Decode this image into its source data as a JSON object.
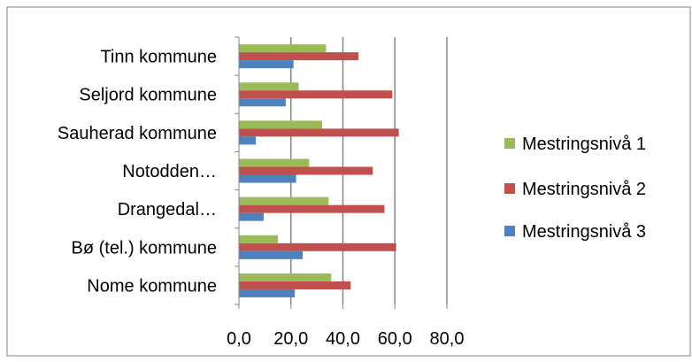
{
  "chart_data": {
    "type": "bar",
    "orientation": "horizontal",
    "categories": [
      "Nome kommune",
      "Bø (tel.) kommune",
      "Drangedal…",
      "Notodden…",
      "Sauherad kommune",
      "Seljord kommune",
      "Tinn kommune"
    ],
    "series": [
      {
        "name": "Mestringsnivå 1",
        "color": "#9BBB59",
        "values": [
          35.5,
          15.0,
          34.5,
          27.0,
          32.0,
          23.0,
          33.5
        ]
      },
      {
        "name": "Mestringsnivå 2",
        "color": "#C0504D",
        "values": [
          43.0,
          60.5,
          56.0,
          51.5,
          61.5,
          59.0,
          46.0
        ]
      },
      {
        "name": "Mestringsnivå 3",
        "color": "#4F81BD",
        "values": [
          21.5,
          24.5,
          9.5,
          22.0,
          6.5,
          18.0,
          21.0
        ]
      }
    ],
    "x_ticks": [
      "0,0",
      "20,0",
      "40,0",
      "60,0",
      "80,0"
    ],
    "xlim": [
      0,
      80
    ],
    "grid": true,
    "legend": "right"
  }
}
